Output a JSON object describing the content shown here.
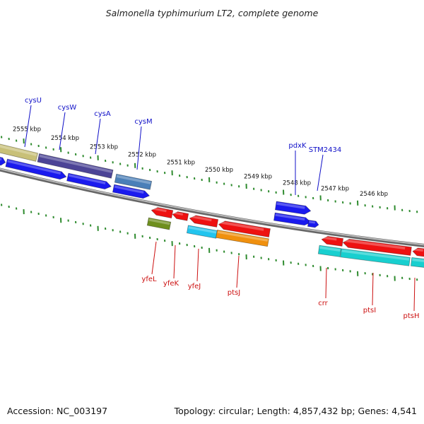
{
  "title": "Salmonella typhimurium LT2, complete genome",
  "footer": {
    "accession": "Accession: NC_003197",
    "topology": "Topology: circular; Length: 4,857,432 bp; Genes: 4,541"
  },
  "colors": {
    "backbone": "#8c8c8c",
    "scale_ticks": "#2e8b2e",
    "top_labels": "#1010c8",
    "bottom_labels": "#cc1010",
    "cds": "#1a1aee",
    "cds_reverse": "#ee1111",
    "other_features": [
      "#c8c078",
      "#4c4496",
      "#4a7fb8",
      "#6e8f1e",
      "#22c4ee",
      "#f0900e",
      "#18cfcf"
    ]
  },
  "scale_labels": [
    "2555 kbp",
    "2554 kbp",
    "2553 kbp",
    "2552 kbp",
    "2551 kbp",
    "2550 kbp",
    "2549 kbp",
    "2548 kbp",
    "2547 kbp",
    "2546 kbp"
  ],
  "top_genes": [
    "cysU",
    "cysW",
    "cysA",
    "cysM",
    "pdxK",
    "STM2434"
  ],
  "bottom_genes": [
    "yfeL",
    "yfeK",
    "yfeJ",
    "ptsJ",
    "crr",
    "ptsI",
    "ptsH"
  ]
}
